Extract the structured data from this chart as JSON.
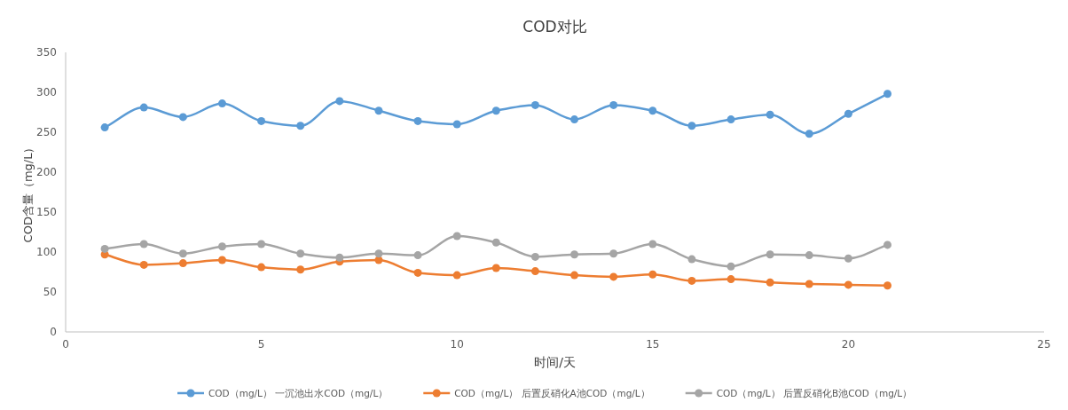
{
  "chart_data": {
    "type": "line",
    "title": "COD对比",
    "xlabel": "时间/天",
    "ylabel": "COD含量（mg/L）",
    "x": [
      1,
      2,
      3,
      4,
      5,
      6,
      7,
      8,
      9,
      10,
      11,
      12,
      13,
      14,
      15,
      16,
      17,
      18,
      19,
      20,
      21
    ],
    "xlim": [
      0,
      25
    ],
    "xticks": [
      0,
      5,
      10,
      15,
      20,
      25
    ],
    "ylim": [
      0,
      350
    ],
    "yticks": [
      0,
      50,
      100,
      150,
      200,
      250,
      300,
      350
    ],
    "grid": false,
    "legend": "bottom",
    "marker": "circle",
    "line_style": "solid",
    "series": [
      {
        "name": "COD（mg/L） 一沉池出水COD（mg/L）",
        "color": "#5b9bd5",
        "values": [
          256,
          281,
          269,
          286,
          264,
          258,
          289,
          277,
          264,
          260,
          277,
          284,
          266,
          284,
          277,
          258,
          266,
          272,
          248,
          273,
          298
        ]
      },
      {
        "name": "COD（mg/L） 后置反硝化A池COD（mg/L）",
        "color": "#ed7d31",
        "values": [
          97,
          84,
          86,
          90,
          81,
          78,
          88,
          90,
          74,
          71,
          80,
          76,
          71,
          69,
          72,
          64,
          66,
          62,
          60,
          59,
          58
        ]
      },
      {
        "name": "COD（mg/L） 后置反硝化B池COD（mg/L）",
        "color": "#a5a5a5",
        "values": [
          104,
          110,
          98,
          107,
          110,
          98,
          93,
          98,
          96,
          120,
          112,
          94,
          97,
          98,
          110,
          91,
          82,
          97,
          96,
          92,
          109
        ]
      }
    ]
  }
}
